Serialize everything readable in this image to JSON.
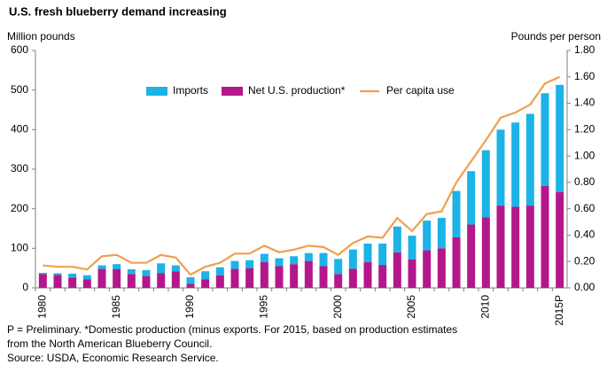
{
  "chart_data": {
    "type": "bar",
    "title": "U.S. fresh blueberry demand  increasing",
    "y_label": "Million pounds",
    "y2_label": "Pounds per person",
    "categories": [
      "1980",
      null,
      null,
      null,
      null,
      "1985",
      null,
      null,
      null,
      null,
      "1990",
      null,
      null,
      null,
      null,
      "1995",
      null,
      null,
      null,
      null,
      "2000",
      null,
      null,
      null,
      null,
      "2005",
      null,
      null,
      null,
      null,
      "2010",
      null,
      null,
      null,
      null,
      "2015P"
    ],
    "series": [
      {
        "name": "Imports",
        "type": "bar",
        "color": "#1cb3e6",
        "values": [
          3,
          4,
          10,
          10,
          9,
          13,
          12,
          15,
          25,
          15,
          17,
          20,
          20,
          20,
          20,
          21,
          20,
          20,
          20,
          33,
          38,
          49,
          47,
          54,
          65,
          60,
          75,
          77,
          117,
          135,
          170,
          192,
          213,
          232,
          234,
          271
        ]
      },
      {
        "name": "Net U.S. production*",
        "type": "bar",
        "color": "#b4178c",
        "values": [
          35,
          33,
          26,
          22,
          48,
          47,
          35,
          30,
          37,
          42,
          10,
          22,
          32,
          48,
          50,
          65,
          55,
          60,
          68,
          55,
          35,
          48,
          65,
          58,
          90,
          72,
          95,
          100,
          128,
          160,
          178,
          208,
          205,
          208,
          258,
          242
        ]
      },
      {
        "name": "Per capita use",
        "type": "line",
        "axis": "y2",
        "color": "#f0a04b",
        "values": [
          0.17,
          0.16,
          0.16,
          0.14,
          0.24,
          0.25,
          0.19,
          0.19,
          0.25,
          0.23,
          0.1,
          0.16,
          0.19,
          0.26,
          0.26,
          0.32,
          0.27,
          0.29,
          0.32,
          0.31,
          0.25,
          0.34,
          0.39,
          0.38,
          0.53,
          0.43,
          0.56,
          0.58,
          0.8,
          0.96,
          1.12,
          1.29,
          1.33,
          1.39,
          1.55,
          1.6
        ]
      }
    ],
    "ylim": [
      0,
      600
    ],
    "yticks": [
      0,
      100,
      200,
      300,
      400,
      500,
      600
    ],
    "y2lim": [
      0,
      1.8
    ],
    "y2ticks": [
      {
        "value": 0,
        "label": "0.00"
      },
      {
        "value": 0.2,
        "label": "0.20"
      },
      {
        "value": 0.4,
        "label": "0.40"
      },
      {
        "value": 0.6,
        "label": "0.60"
      },
      {
        "value": 0.8,
        "label": "0.80"
      },
      {
        "value": 1,
        "label": "1.00"
      },
      {
        "value": 1.2,
        "label": "1.20"
      },
      {
        "value": 1.4,
        "label": "1.40"
      },
      {
        "value": 1.6,
        "label": "1.60"
      },
      {
        "value": 1.8,
        "label": "1.80"
      }
    ],
    "grid": false,
    "legend": "top",
    "notes": [
      "P = Preliminary.  *Domestic production (minus exports. For 2015, based on production estimates",
      "from the North American Blueberry Council.",
      "Source: USDA, Economic Research Service."
    ]
  }
}
